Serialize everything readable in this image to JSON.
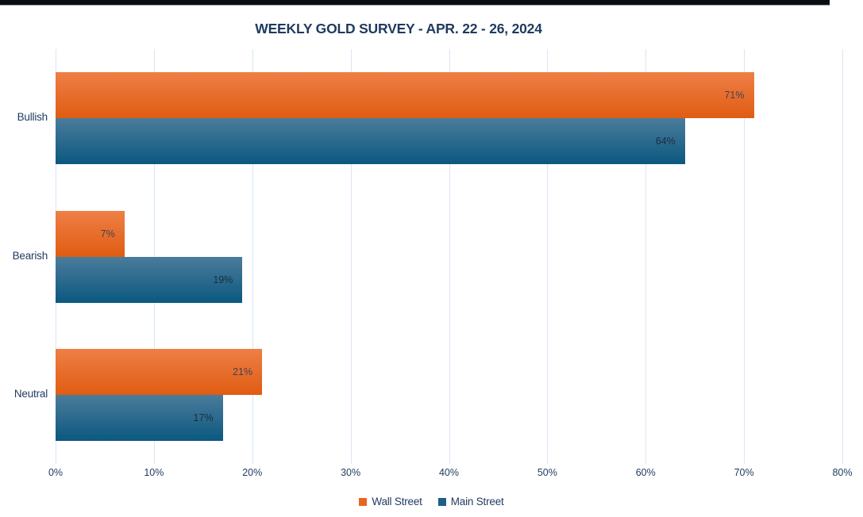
{
  "chart_data": {
    "type": "bar",
    "orientation": "horizontal",
    "title": "WEEKLY GOLD SURVEY - APR. 22 - 26, 2024",
    "categories": [
      "Bullish",
      "Bearish",
      "Neutral"
    ],
    "series": [
      {
        "name": "Wall Street",
        "values": [
          71,
          7,
          21
        ],
        "labels": [
          "71%",
          "7%",
          "21%"
        ],
        "color_top": "#ee7f46",
        "color_bottom": "#e05c12",
        "legend_color": "#e8661f",
        "label_color": "#3e4450"
      },
      {
        "name": "Main Street",
        "values": [
          64,
          19,
          17
        ],
        "labels": [
          "64%",
          "19%",
          "17%"
        ],
        "color_top": "#4b7c9b",
        "color_bottom": "#0b5880",
        "legend_color": "#1c5f87",
        "label_color": "#1d2c3b"
      }
    ],
    "xlim": [
      0,
      80
    ],
    "x_ticks": [
      0,
      10,
      20,
      30,
      40,
      50,
      60,
      70,
      80
    ],
    "x_tick_labels": [
      "0%",
      "10%",
      "20%",
      "30%",
      "40%",
      "50%",
      "60%",
      "70%",
      "80%"
    ],
    "grid": "vertical",
    "gridline_color": "#d9e6f3",
    "legend_position": "bottom",
    "title_color": "#1f3a5e",
    "axis_text_color": "#1f3a5e"
  },
  "decor": {
    "top_accent_color": "#0b0d13"
  }
}
